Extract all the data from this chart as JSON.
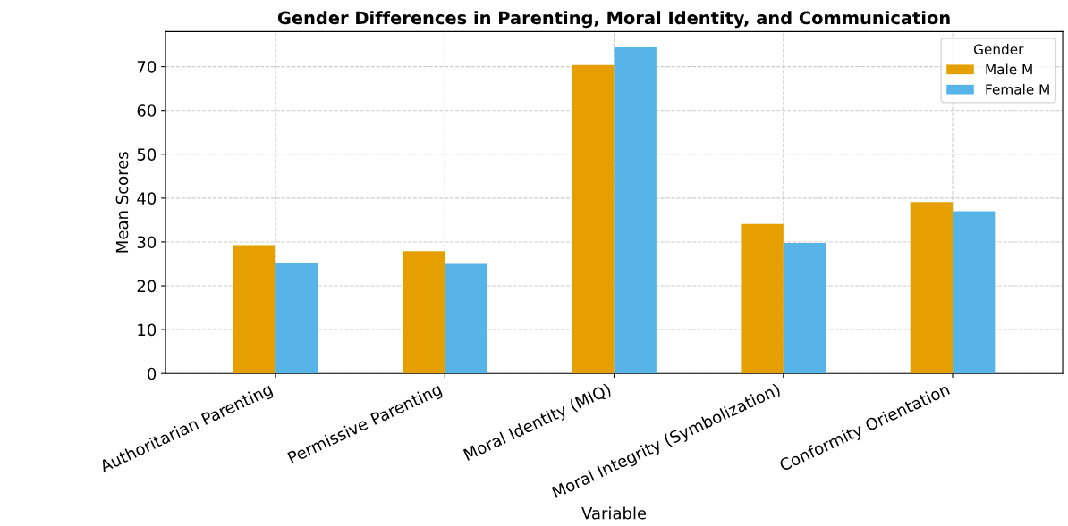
{
  "chart_data": {
    "type": "bar",
    "title": "Gender Differences in Parenting, Moral Identity, and Communication",
    "xlabel": "Variable",
    "ylabel": "Mean Scores",
    "legend_title": "Gender",
    "categories": [
      "Authoritarian Parenting",
      "Permissive Parenting",
      "Moral Identity (MIQ)",
      "Moral Integrity (Symbolization)",
      "Conformity Orientation"
    ],
    "series": [
      {
        "name": "Male M",
        "color": "#e69f00",
        "values": [
          29.3,
          27.9,
          70.4,
          34.1,
          39.1
        ]
      },
      {
        "name": "Female M",
        "color": "#56b4e9",
        "values": [
          25.3,
          25.0,
          74.4,
          29.8,
          37.0
        ]
      }
    ],
    "ylim": [
      0,
      78
    ],
    "yticks": [
      0,
      10,
      20,
      30,
      40,
      50,
      60,
      70
    ],
    "grid": true,
    "legend": "top right"
  }
}
